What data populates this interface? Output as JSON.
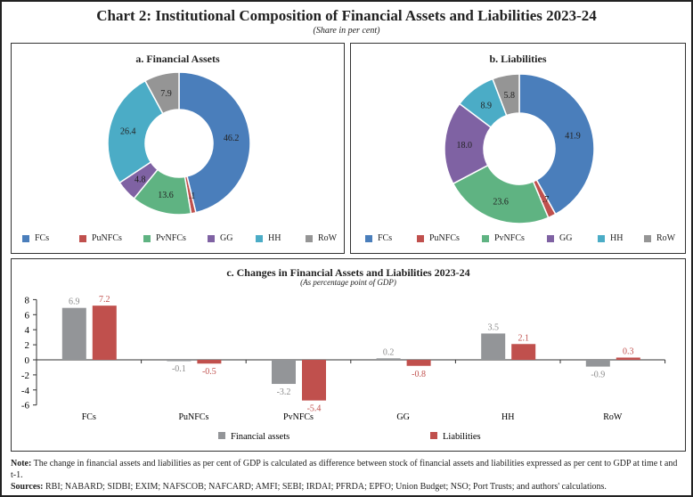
{
  "title": "Chart 2: Institutional Composition of Financial Assets and Liabilities 2023-24",
  "subtitle": "(Share in per cent)",
  "colors": {
    "FCs": "#4a7ebb",
    "PuNFCs": "#c0504d",
    "PvNFCs": "#5fb382",
    "GG": "#7f62a3",
    "HH": "#4bacc6",
    "RoW": "#959595",
    "fa_bar": "#939598",
    "li_bar": "#c0504d"
  },
  "chart_data": [
    {
      "type": "pie",
      "donut": true,
      "title": "a. Financial Assets",
      "categories": [
        "FCs",
        "PuNFCs",
        "PvNFCs",
        "GG",
        "HH",
        "RoW"
      ],
      "values": [
        46.2,
        1.1,
        13.6,
        4.8,
        26.4,
        7.9
      ],
      "legend": "bottom"
    },
    {
      "type": "pie",
      "donut": true,
      "title": "b. Liabilities",
      "categories": [
        "FCs",
        "PuNFCs",
        "PvNFCs",
        "GG",
        "HH",
        "RoW"
      ],
      "values": [
        41.9,
        1.7,
        23.6,
        18.0,
        8.9,
        5.8
      ],
      "legend": "bottom"
    },
    {
      "type": "bar",
      "title": "c. Changes in Financial Assets and Liabilities 2023-24",
      "subtitle": "(As percentage point of GDP)",
      "categories": [
        "FCs",
        "PuNFCs",
        "PvNFCs",
        "GG",
        "HH",
        "RoW"
      ],
      "series": [
        {
          "name": "Financial assets",
          "values": [
            6.9,
            -0.1,
            -3.2,
            0.2,
            3.5,
            -0.9
          ]
        },
        {
          "name": "Liabilities",
          "values": [
            7.2,
            -0.5,
            -5.4,
            -0.8,
            2.1,
            0.3
          ]
        }
      ],
      "ylim": [
        -6,
        8
      ],
      "yticks": [
        8,
        6,
        4,
        2,
        0,
        -2,
        -4,
        -6
      ],
      "legend": "bottom",
      "grid": false
    }
  ],
  "note_label": "Note:",
  "note": "The change in financial assets and liabilities as per cent of GDP is calculated as difference between stock of financial assets and liabilities expressed as per cent to GDP at time t and t-1.",
  "sources_label": "Sources:",
  "sources": "RBI; NABARD; SIDBI; EXIM; NAFSCOB; NAFCARD; AMFI; SEBI; IRDAI; PFRDA; EPFO; Union Budget; NSO; Port Trusts; and authors' calculations."
}
